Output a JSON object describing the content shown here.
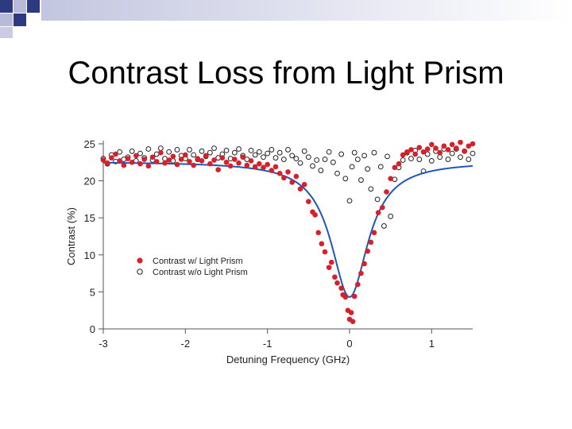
{
  "slide": {
    "title": "Contrast Loss from Light Prism",
    "decoration_colors": {
      "navy": "#2e3a80",
      "lavender": "#b7bbd9"
    }
  },
  "chart_data": {
    "type": "scatter",
    "title": "",
    "xlabel": "Detuning Frequency (GHz)",
    "ylabel": "Contrast (%)",
    "xlim": [
      -3,
      1.5
    ],
    "ylim": [
      0,
      25
    ],
    "xticks": [
      -3,
      -2,
      -1,
      0,
      1
    ],
    "yticks": [
      0,
      5,
      10,
      15,
      20,
      25
    ],
    "grid": false,
    "legend_position": "center-left",
    "series": [
      {
        "name": "Contrast w/ Light Prism",
        "marker": "filled-circle",
        "color": "#d8202a",
        "points": [
          [
            -3.0,
            22.8
          ],
          [
            -2.95,
            22.4
          ],
          [
            -2.9,
            23.1
          ],
          [
            -2.85,
            23.6
          ],
          [
            -2.8,
            22.7
          ],
          [
            -2.75,
            22.1
          ],
          [
            -2.7,
            23.0
          ],
          [
            -2.65,
            22.5
          ],
          [
            -2.6,
            23.4
          ],
          [
            -2.55,
            22.3
          ],
          [
            -2.5,
            22.9
          ],
          [
            -2.45,
            22.0
          ],
          [
            -2.4,
            23.2
          ],
          [
            -2.35,
            22.6
          ],
          [
            -2.3,
            23.8
          ],
          [
            -2.25,
            22.4
          ],
          [
            -2.2,
            22.8
          ],
          [
            -2.15,
            23.3
          ],
          [
            -2.1,
            22.2
          ],
          [
            -2.05,
            22.9
          ],
          [
            -2.0,
            23.5
          ],
          [
            -1.95,
            22.6
          ],
          [
            -1.9,
            22.1
          ],
          [
            -1.85,
            23.0
          ],
          [
            -1.8,
            22.7
          ],
          [
            -1.75,
            23.4
          ],
          [
            -1.7,
            22.3
          ],
          [
            -1.65,
            22.8
          ],
          [
            -1.6,
            21.5
          ],
          [
            -1.55,
            23.1
          ],
          [
            -1.5,
            22.5
          ],
          [
            -1.45,
            22.0
          ],
          [
            -1.4,
            22.9
          ],
          [
            -1.35,
            22.4
          ],
          [
            -1.3,
            23.2
          ],
          [
            -1.25,
            22.1
          ],
          [
            -1.2,
            22.7
          ],
          [
            -1.15,
            21.9
          ],
          [
            -1.1,
            22.3
          ],
          [
            -1.05,
            21.8
          ],
          [
            -1.0,
            22.2
          ],
          [
            -0.95,
            21.4
          ],
          [
            -0.9,
            21.9
          ],
          [
            -0.85,
            21.0
          ],
          [
            -0.8,
            20.4
          ],
          [
            -0.75,
            21.2
          ],
          [
            -0.7,
            19.8
          ],
          [
            -0.65,
            20.6
          ],
          [
            -0.6,
            18.9
          ],
          [
            -0.55,
            19.5
          ],
          [
            -0.5,
            17.2
          ],
          [
            -0.45,
            15.8
          ],
          [
            -0.42,
            15.4
          ],
          [
            -0.38,
            13.0
          ],
          [
            -0.34,
            11.5
          ],
          [
            -0.3,
            10.4
          ],
          [
            -0.25,
            8.3
          ],
          [
            -0.22,
            9.0
          ],
          [
            -0.18,
            7.0
          ],
          [
            -0.15,
            6.2
          ],
          [
            -0.1,
            5.5
          ],
          [
            -0.08,
            4.6
          ],
          [
            -0.05,
            4.3
          ],
          [
            -0.02,
            2.5
          ],
          [
            0.0,
            1.3
          ],
          [
            0.02,
            2.2
          ],
          [
            0.04,
            1.0
          ],
          [
            0.06,
            4.4
          ],
          [
            0.1,
            6.0
          ],
          [
            0.14,
            7.5
          ],
          [
            0.18,
            8.8
          ],
          [
            0.22,
            10.5
          ],
          [
            0.26,
            11.7
          ],
          [
            0.3,
            13.0
          ],
          [
            0.35,
            15.7
          ],
          [
            0.4,
            16.4
          ],
          [
            0.45,
            18.5
          ],
          [
            0.5,
            20.3
          ],
          [
            0.55,
            21.8
          ],
          [
            0.6,
            22.3
          ],
          [
            0.65,
            23.5
          ],
          [
            0.7,
            23.9
          ],
          [
            0.75,
            24.2
          ],
          [
            0.8,
            23.6
          ],
          [
            0.85,
            24.5
          ],
          [
            0.9,
            23.9
          ],
          [
            0.95,
            24.3
          ],
          [
            1.0,
            24.9
          ],
          [
            1.05,
            24.4
          ],
          [
            1.1,
            23.8
          ],
          [
            1.15,
            24.7
          ],
          [
            1.2,
            24.2
          ],
          [
            1.25,
            24.9
          ],
          [
            1.3,
            24.4
          ],
          [
            1.35,
            25.2
          ],
          [
            1.4,
            24.0
          ],
          [
            1.45,
            24.7
          ],
          [
            1.5,
            25.0
          ]
        ]
      },
      {
        "name": "Contrast w/o Light Prism",
        "marker": "open-circle",
        "color": "#222222",
        "points": [
          [
            -3.0,
            23.0
          ],
          [
            -2.95,
            22.3
          ],
          [
            -2.9,
            23.5
          ],
          [
            -2.85,
            22.6
          ],
          [
            -2.8,
            23.9
          ],
          [
            -2.75,
            22.9
          ],
          [
            -2.7,
            23.2
          ],
          [
            -2.65,
            24.0
          ],
          [
            -2.6,
            22.7
          ],
          [
            -2.55,
            23.7
          ],
          [
            -2.5,
            23.1
          ],
          [
            -2.45,
            24.3
          ],
          [
            -2.4,
            22.8
          ],
          [
            -2.35,
            23.6
          ],
          [
            -2.3,
            24.4
          ],
          [
            -2.25,
            23.0
          ],
          [
            -2.2,
            23.9
          ],
          [
            -2.15,
            22.7
          ],
          [
            -2.1,
            24.2
          ],
          [
            -2.05,
            23.4
          ],
          [
            -2.0,
            23.0
          ],
          [
            -1.95,
            24.2
          ],
          [
            -1.9,
            23.5
          ],
          [
            -1.85,
            22.9
          ],
          [
            -1.8,
            24.0
          ],
          [
            -1.75,
            23.3
          ],
          [
            -1.7,
            23.8
          ],
          [
            -1.65,
            24.4
          ],
          [
            -1.6,
            23.1
          ],
          [
            -1.55,
            23.6
          ],
          [
            -1.5,
            24.1
          ],
          [
            -1.45,
            23.0
          ],
          [
            -1.4,
            23.8
          ],
          [
            -1.35,
            24.3
          ],
          [
            -1.3,
            23.4
          ],
          [
            -1.25,
            22.9
          ],
          [
            -1.2,
            24.1
          ],
          [
            -1.15,
            23.5
          ],
          [
            -1.1,
            23.9
          ],
          [
            -1.05,
            23.2
          ],
          [
            -1.0,
            23.7
          ],
          [
            -0.95,
            24.2
          ],
          [
            -0.9,
            23.1
          ],
          [
            -0.85,
            23.8
          ],
          [
            -0.8,
            22.9
          ],
          [
            -0.75,
            24.2
          ],
          [
            -0.7,
            23.4
          ],
          [
            -0.65,
            23.0
          ],
          [
            -0.6,
            22.4
          ],
          [
            -0.55,
            24.0
          ],
          [
            -0.5,
            23.2
          ],
          [
            -0.45,
            22.0
          ],
          [
            -0.4,
            22.8
          ],
          [
            -0.35,
            21.4
          ],
          [
            -0.3,
            22.9
          ],
          [
            -0.25,
            23.9
          ],
          [
            -0.2,
            22.5
          ],
          [
            -0.15,
            21.0
          ],
          [
            -0.1,
            23.6
          ],
          [
            -0.05,
            20.3
          ],
          [
            0.0,
            17.3
          ],
          [
            0.03,
            21.9
          ],
          [
            0.06,
            23.8
          ],
          [
            0.1,
            22.9
          ],
          [
            0.14,
            20.1
          ],
          [
            0.18,
            23.4
          ],
          [
            0.22,
            21.6
          ],
          [
            0.26,
            18.9
          ],
          [
            0.3,
            23.8
          ],
          [
            0.34,
            17.5
          ],
          [
            0.38,
            21.9
          ],
          [
            0.42,
            13.9
          ],
          [
            0.46,
            23.3
          ],
          [
            0.5,
            15.2
          ],
          [
            0.55,
            20.2
          ],
          [
            0.6,
            21.8
          ],
          [
            0.65,
            22.8
          ],
          [
            0.7,
            23.8
          ],
          [
            0.75,
            23.0
          ],
          [
            0.8,
            24.1
          ],
          [
            0.85,
            22.9
          ],
          [
            0.9,
            21.3
          ],
          [
            0.95,
            23.6
          ],
          [
            1.0,
            22.7
          ],
          [
            1.05,
            24.0
          ],
          [
            1.1,
            23.2
          ],
          [
            1.15,
            24.3
          ],
          [
            1.2,
            22.9
          ],
          [
            1.25,
            23.7
          ],
          [
            1.3,
            24.3
          ],
          [
            1.35,
            23.2
          ],
          [
            1.4,
            24.0
          ],
          [
            1.45,
            22.9
          ],
          [
            1.5,
            23.7
          ]
        ]
      }
    ],
    "fit_curve": {
      "type": "lorentzian-dip",
      "color": "#1f57b8",
      "baseline": 22.6,
      "min": 4.3,
      "center": 0.0,
      "fwhm": 0.55
    }
  }
}
